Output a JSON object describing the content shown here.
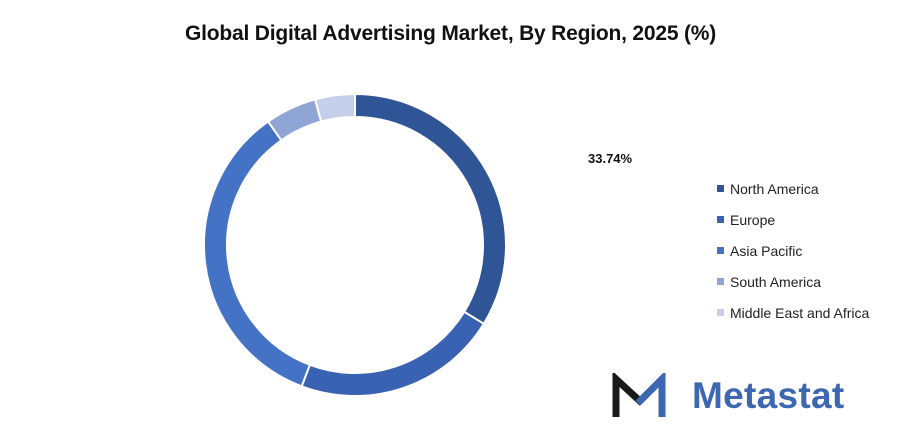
{
  "chart_data": {
    "type": "pie",
    "title": "Global Digital Advertising Market, By Region, 2025 (%)",
    "categories": [
      "North America",
      "Europe",
      "Asia Pacific",
      "South America",
      "Middle East and Africa"
    ],
    "values": [
      33.74,
      22.0,
      34.5,
      5.5,
      4.26
    ],
    "colors": [
      "#2f5597",
      "#3a62b3",
      "#4472c4",
      "#8fa5d6",
      "#c5cfe9"
    ],
    "data_labels": [
      "33.74%"
    ],
    "legend_position": "right",
    "donut": true
  },
  "brand": {
    "name": "Metastat",
    "logo_icon": "metastat-m-logo",
    "logo_color_dark": "#1a1a1a",
    "logo_color_accent": "#3d67b0"
  }
}
